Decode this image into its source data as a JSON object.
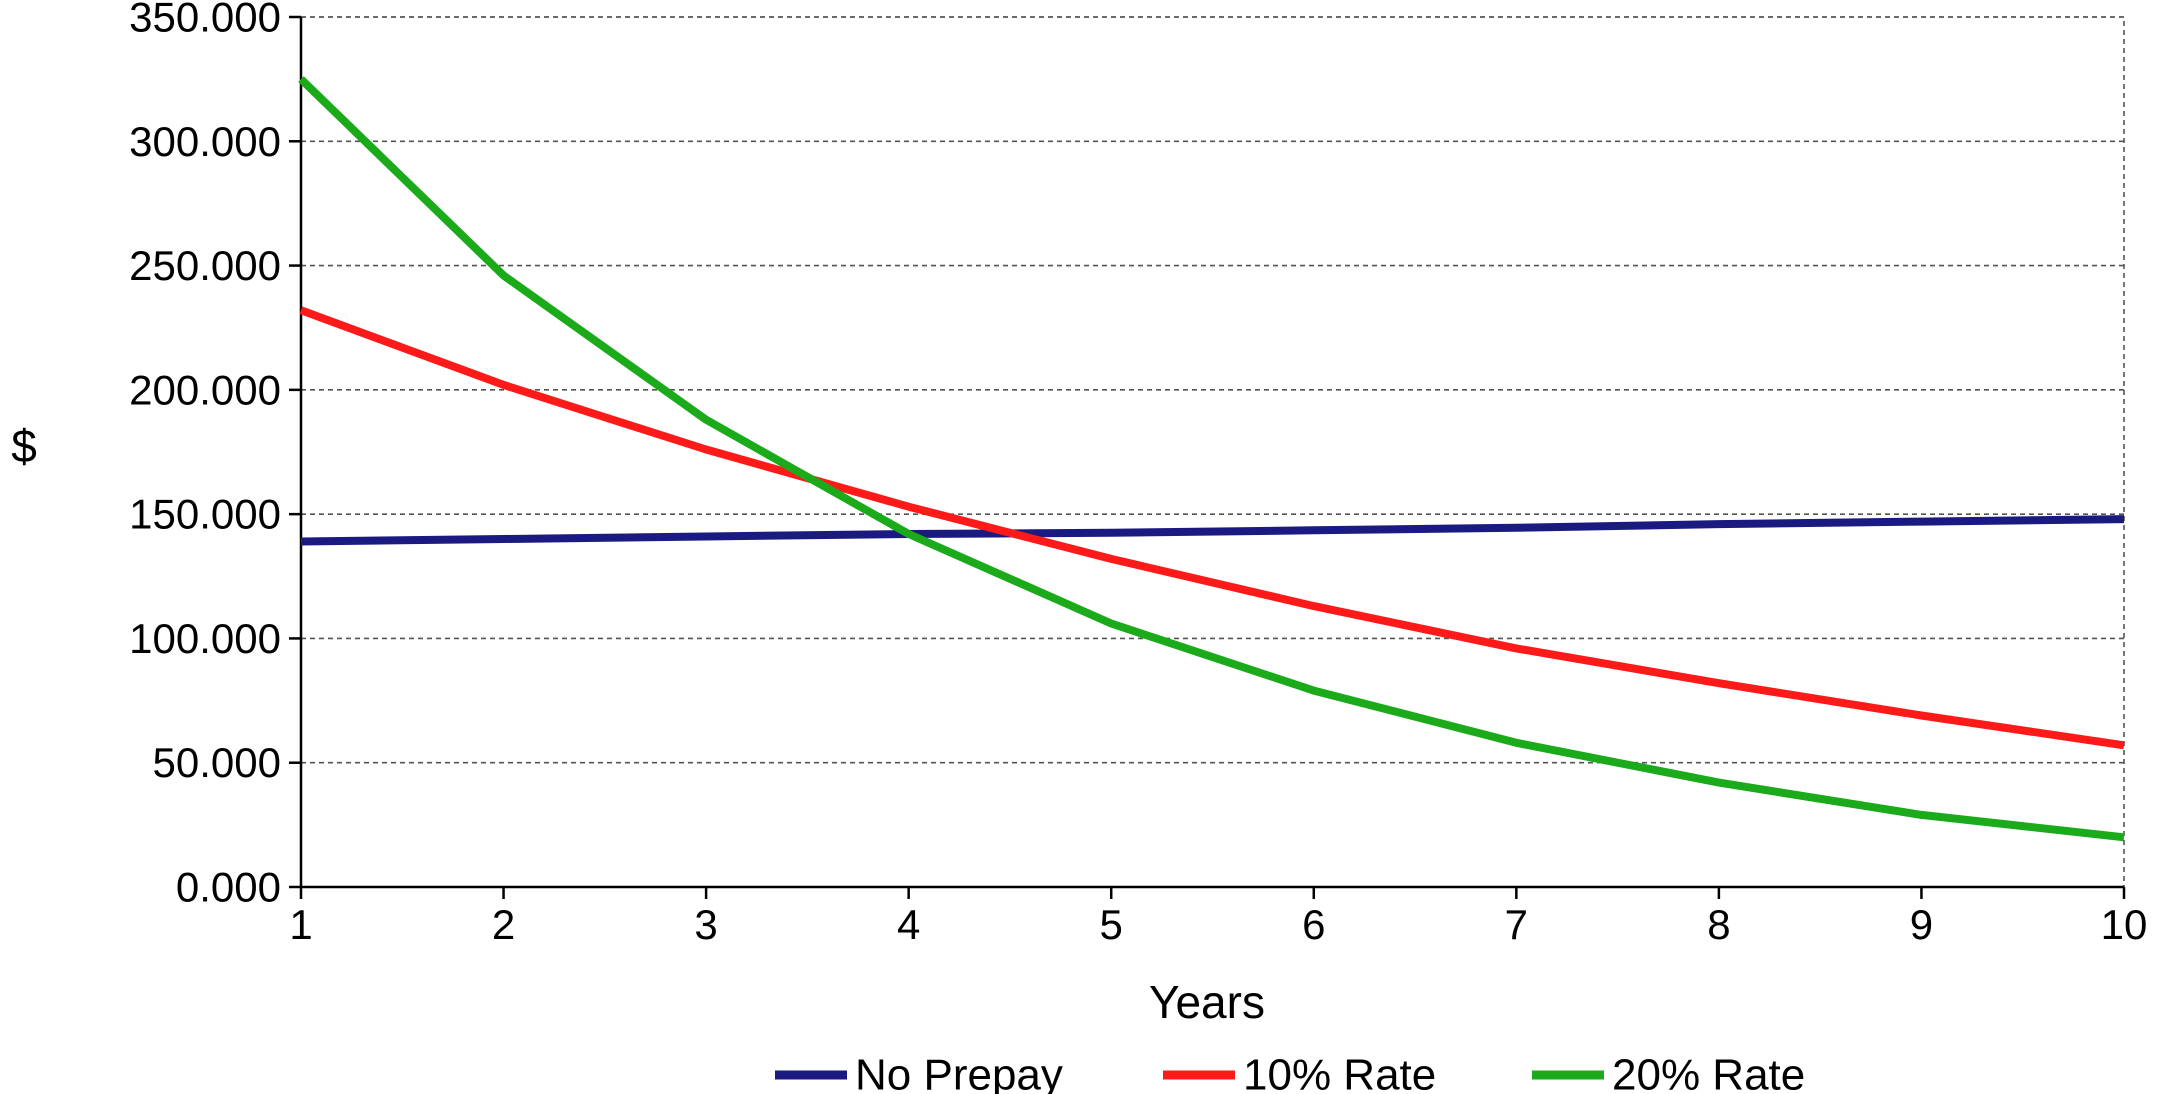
{
  "chart_data": {
    "type": "line",
    "title": "",
    "xlabel": "Years",
    "ylabel": "$",
    "x": [
      1,
      2,
      3,
      4,
      5,
      6,
      7,
      8,
      9,
      10
    ],
    "x_tick_labels": [
      "1",
      "2",
      "3",
      "4",
      "5",
      "6",
      "7",
      "8",
      "9",
      "10"
    ],
    "xlim": [
      1,
      10
    ],
    "ylim": [
      0,
      350
    ],
    "y_ticks": [
      0,
      50,
      100,
      150,
      200,
      250,
      300,
      350
    ],
    "y_tick_labels": [
      "0.000",
      "50.000",
      "100.000",
      "150.000",
      "200.000",
      "250.000",
      "300.000",
      "350.000"
    ],
    "grid": true,
    "legend_position": "bottom",
    "series": [
      {
        "name": "No Prepay",
        "color": "#1a1a80",
        "values": [
          139,
          140,
          141,
          142,
          142.5,
          143.5,
          144.5,
          146,
          147,
          148
        ]
      },
      {
        "name": "10% Rate",
        "color": "#ff1a1a",
        "values": [
          232,
          202,
          176,
          153,
          132,
          113,
          96,
          82,
          69,
          57
        ]
      },
      {
        "name": "20% Rate",
        "color": "#1aaa1a",
        "values": [
          325,
          246,
          188,
          142,
          106,
          79,
          58,
          42,
          29,
          20
        ]
      }
    ]
  }
}
